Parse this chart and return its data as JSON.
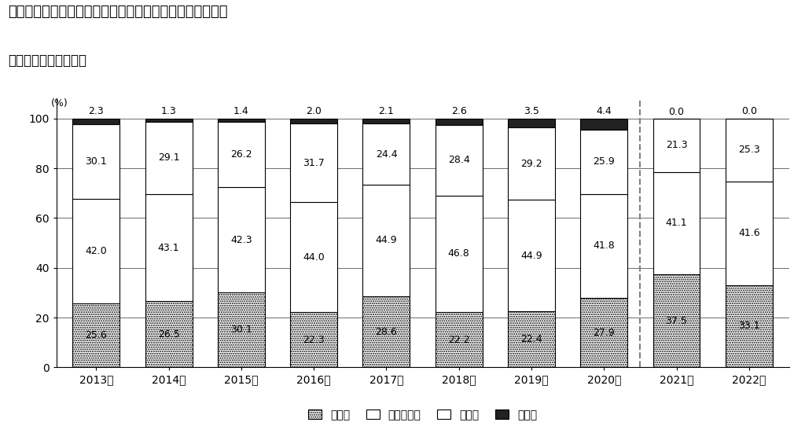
{
  "title1": "（図表２）１年前と比較した金融資産残高の増減＜問７＞",
  "title2": "＜金融資産保有世帯＞",
  "years": [
    "2013年",
    "2014年",
    "2015年",
    "2016年",
    "2017年",
    "2018年",
    "2019年",
    "2020年",
    "2021年",
    "2022年"
  ],
  "fueta": [
    25.6,
    26.5,
    30.1,
    22.3,
    28.6,
    22.2,
    22.4,
    27.9,
    37.5,
    33.1
  ],
  "kawaranai": [
    42.0,
    43.1,
    42.3,
    44.0,
    44.9,
    46.8,
    44.9,
    41.8,
    41.1,
    41.6
  ],
  "hetta": [
    30.1,
    29.1,
    26.2,
    31.7,
    24.4,
    28.4,
    29.2,
    25.9,
    21.3,
    25.3
  ],
  "mukaitou": [
    2.3,
    1.3,
    1.4,
    2.0,
    2.1,
    2.6,
    3.5,
    4.4,
    0.0,
    0.0
  ],
  "ylabel": "(%)",
  "legend_labels": [
    "増えた",
    "変わらない",
    "減った",
    "無回答"
  ],
  "background_color": "#ffffff",
  "bar_width": 0.65,
  "fontsize_title": 13,
  "fontsize_subtitle": 12,
  "fontsize_val": 9,
  "fontsize_tick": 10,
  "fontsize_legend": 10
}
